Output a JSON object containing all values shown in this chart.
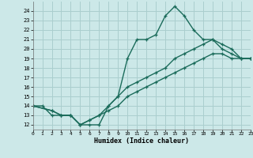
{
  "xlabel": "Humidex (Indice chaleur)",
  "bg_color": "#cce8e8",
  "grid_color": "#aacece",
  "line_color": "#1a6b5a",
  "line1_x": [
    0,
    1,
    2,
    3,
    4,
    5,
    6,
    7,
    8,
    9,
    10,
    11,
    12,
    13,
    14,
    15,
    16,
    17,
    18,
    19,
    20,
    21,
    22,
    23
  ],
  "line1_y": [
    14,
    14,
    13,
    13,
    13,
    12,
    12,
    12,
    14,
    15,
    19,
    21,
    21,
    21.5,
    23.5,
    24.5,
    23.5,
    22,
    21,
    21,
    20.5,
    20,
    19,
    19
  ],
  "line2_x": [
    0,
    2,
    3,
    4,
    5,
    6,
    7,
    8,
    9,
    10,
    11,
    12,
    13,
    14,
    15,
    16,
    17,
    18,
    19,
    20,
    21,
    22,
    23
  ],
  "line2_y": [
    14,
    13.5,
    13,
    13,
    12,
    12.5,
    13,
    14,
    15,
    16,
    16.5,
    17,
    17.5,
    18,
    19,
    19.5,
    20,
    20.5,
    21,
    20,
    19.5,
    19,
    19
  ],
  "line3_x": [
    0,
    2,
    3,
    4,
    5,
    6,
    7,
    8,
    9,
    10,
    11,
    12,
    13,
    14,
    15,
    16,
    17,
    18,
    19,
    20,
    21,
    22,
    23
  ],
  "line3_y": [
    14,
    13.5,
    13,
    13,
    12,
    12.5,
    13,
    13.5,
    14,
    15,
    15.5,
    16,
    16.5,
    17,
    17.5,
    18,
    18.5,
    19,
    19.5,
    19.5,
    19,
    19,
    19
  ],
  "xlim": [
    0,
    23
  ],
  "ylim": [
    11.5,
    25
  ],
  "yticks": [
    12,
    13,
    14,
    15,
    16,
    17,
    18,
    19,
    20,
    21,
    22,
    23,
    24
  ],
  "xticks": [
    0,
    1,
    2,
    3,
    4,
    5,
    6,
    7,
    8,
    9,
    10,
    11,
    12,
    13,
    14,
    15,
    16,
    17,
    18,
    19,
    20,
    21,
    22,
    23
  ]
}
